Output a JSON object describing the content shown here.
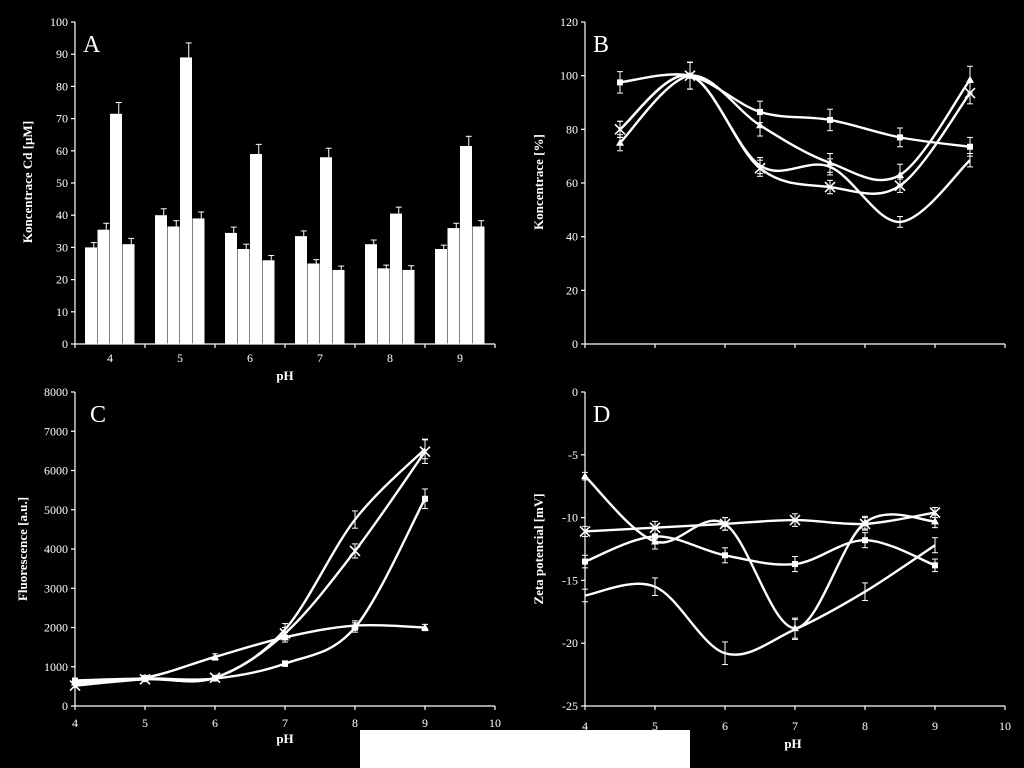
{
  "chart_data": [
    {
      "type": "bar",
      "panel": "A",
      "ylabel": "Koncentrace Cd [µM]",
      "xlabel": "pH",
      "ylim": [
        0,
        100
      ],
      "yticks": [
        0,
        10,
        20,
        30,
        40,
        50,
        60,
        70,
        80,
        90,
        100
      ],
      "categories": [
        "4",
        "5",
        "6",
        "7",
        "8",
        "9"
      ],
      "series": [
        {
          "values": [
            30,
            40,
            34.5,
            33.5,
            31,
            29.5
          ],
          "errors": [
            1.5,
            2,
            1.8,
            1.6,
            1.3,
            1.2
          ]
        },
        {
          "values": [
            35.5,
            36.5,
            29.5,
            25,
            23.5,
            36
          ],
          "errors": [
            2,
            1.8,
            1.5,
            1.2,
            1,
            1.5
          ]
        },
        {
          "values": [
            71.5,
            89,
            59,
            58,
            40.5,
            61.5
          ],
          "errors": [
            3.5,
            4.5,
            3,
            2.8,
            2,
            3
          ]
        },
        {
          "values": [
            31,
            39,
            26,
            23,
            23,
            36.5
          ],
          "errors": [
            1.8,
            2,
            1.5,
            1.2,
            1.3,
            1.8
          ]
        }
      ]
    },
    {
      "type": "line",
      "panel": "B",
      "ylabel": "Koncentrace [%]",
      "xlabel": "",
      "ylim": [
        0,
        120
      ],
      "yticks": [
        0,
        20,
        40,
        60,
        80,
        100,
        120
      ],
      "x": [
        4,
        5,
        6,
        7,
        8,
        9
      ],
      "series": [
        {
          "marker": "square",
          "values": [
            97.5,
            100,
            86.5,
            83.5,
            77,
            73.5
          ],
          "errors": [
            4,
            5,
            4,
            4,
            3.5,
            3.5
          ]
        },
        {
          "marker": "triangle",
          "values": [
            75,
            100,
            81.5,
            67.5,
            63,
            98.5
          ],
          "errors": [
            3,
            5,
            4,
            3.5,
            4,
            5
          ]
        },
        {
          "marker": "x",
          "values": [
            80,
            100,
            65.5,
            58.5,
            59,
            93.5
          ],
          "errors": [
            3,
            5,
            3,
            2.5,
            2.5,
            4
          ]
        },
        {
          "marker": "none",
          "values": [
            80,
            100,
            66.5,
            66,
            45.5,
            68.5
          ],
          "errors": [
            3,
            5,
            3,
            3,
            2,
            2.5
          ]
        }
      ]
    },
    {
      "type": "line",
      "panel": "C",
      "ylabel": "Fluorescence [a.u.]",
      "xlabel": "pH",
      "ylim": [
        0,
        8000
      ],
      "yticks": [
        0,
        1000,
        2000,
        3000,
        4000,
        5000,
        6000,
        7000,
        8000
      ],
      "xlim": [
        4,
        10
      ],
      "xticks": [
        4,
        5,
        6,
        7,
        8,
        9,
        10
      ],
      "x": [
        4,
        5,
        6,
        7,
        8,
        9
      ],
      "series": [
        {
          "marker": "square",
          "values": [
            650,
            700,
            700,
            1080,
            2000,
            5280
          ],
          "errors": [
            60,
            60,
            60,
            70,
            120,
            250
          ]
        },
        {
          "marker": "triangle",
          "values": [
            600,
            720,
            1250,
            1750,
            2050,
            2000
          ],
          "errors": [
            60,
            60,
            80,
            120,
            120,
            80
          ]
        },
        {
          "marker": "x",
          "values": [
            520,
            680,
            720,
            1850,
            3950,
            6480
          ],
          "errors": [
            50,
            60,
            60,
            150,
            180,
            300
          ]
        },
        {
          "marker": "none",
          "values": [
            580,
            700,
            720,
            1950,
            4750,
            6550
          ],
          "errors": [
            50,
            60,
            60,
            150,
            220,
            250
          ]
        }
      ]
    },
    {
      "type": "line",
      "panel": "D",
      "ylabel": "Zeta potencial [mV]",
      "xlabel": "pH",
      "ylim": [
        -25,
        0
      ],
      "yticks": [
        -25,
        -20,
        -15,
        -10,
        -5,
        0
      ],
      "xlim": [
        4,
        10
      ],
      "xticks": [
        4,
        5,
        6,
        7,
        8,
        9,
        10
      ],
      "x": [
        4,
        5,
        6,
        7,
        8,
        9
      ],
      "series": [
        {
          "marker": "square",
          "values": [
            -13.5,
            -11.5,
            -13,
            -13.7,
            -11.8,
            -13.8
          ],
          "errors": [
            0.5,
            0.6,
            0.6,
            0.6,
            0.6,
            0.5
          ]
        },
        {
          "marker": "triangle",
          "values": [
            -6.7,
            -11.9,
            -10.5,
            -18.8,
            -10.4,
            -10.3
          ],
          "errors": [
            0.3,
            0.6,
            0.5,
            0.8,
            0.5,
            0.5
          ]
        },
        {
          "marker": "x",
          "values": [
            -11.1,
            -10.8,
            -10.5,
            -10.2,
            -10.5,
            -9.6
          ],
          "errors": [
            0.4,
            0.5,
            0.5,
            0.5,
            0.5,
            0.4
          ]
        },
        {
          "marker": "none",
          "values": [
            -16.2,
            -15.5,
            -20.8,
            -18.9,
            -15.9,
            -12.2
          ],
          "errors": [
            0.5,
            0.7,
            0.9,
            0.8,
            0.7,
            0.6
          ]
        }
      ]
    }
  ]
}
